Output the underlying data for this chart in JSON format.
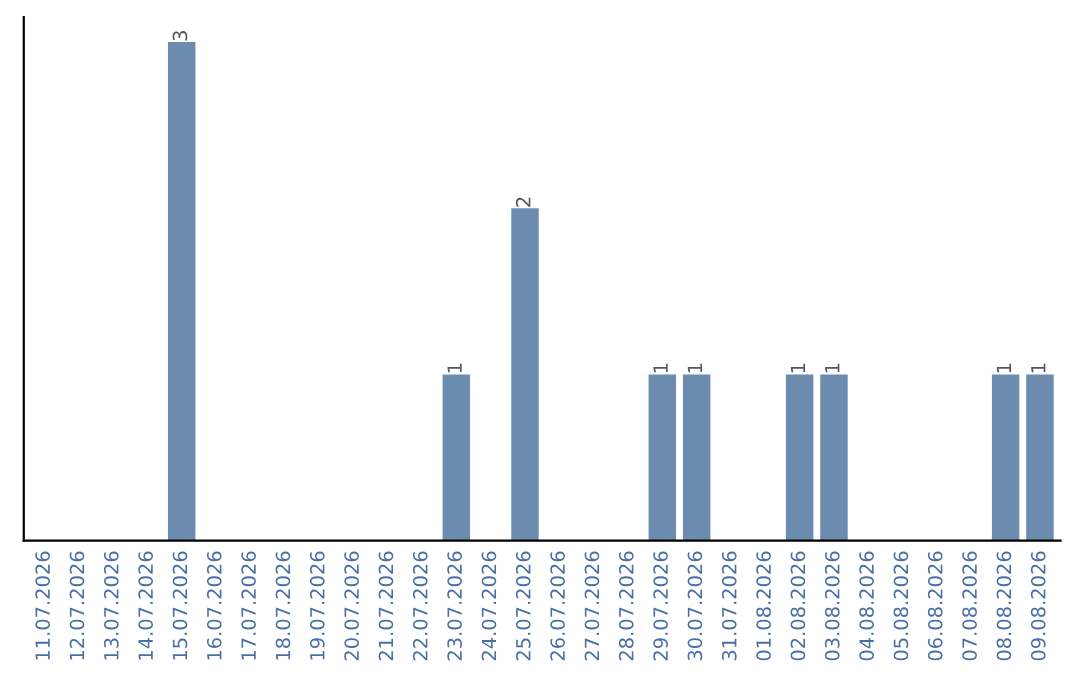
{
  "chart_data": {
    "type": "bar",
    "categories": [
      "11.07.2026",
      "12.07.2026",
      "13.07.2026",
      "14.07.2026",
      "15.07.2026",
      "16.07.2026",
      "17.07.2026",
      "18.07.2026",
      "19.07.2026",
      "20.07.2026",
      "21.07.2026",
      "22.07.2026",
      "23.07.2026",
      "24.07.2026",
      "25.07.2026",
      "26.07.2026",
      "27.07.2026",
      "28.07.2026",
      "29.07.2026",
      "30.07.2026",
      "31.07.2026",
      "01.08.2026",
      "02.08.2026",
      "03.08.2026",
      "04.08.2026",
      "05.08.2026",
      "06.08.2026",
      "07.08.2026",
      "08.08.2026",
      "09.08.2026"
    ],
    "values": [
      0,
      0,
      0,
      0,
      3,
      0,
      0,
      0,
      0,
      0,
      0,
      0,
      1,
      0,
      2,
      0,
      0,
      0,
      1,
      1,
      0,
      0,
      1,
      1,
      0,
      0,
      0,
      0,
      1,
      1
    ],
    "value_labels": [
      null,
      null,
      null,
      null,
      "3",
      null,
      null,
      null,
      null,
      null,
      null,
      null,
      "1",
      null,
      "2",
      null,
      null,
      null,
      "1",
      "1",
      null,
      null,
      "1",
      "1",
      null,
      null,
      null,
      null,
      "1",
      "1"
    ],
    "color": "#6b8cae",
    "tick_labels": "x",
    "grid": false,
    "legend": false
  }
}
